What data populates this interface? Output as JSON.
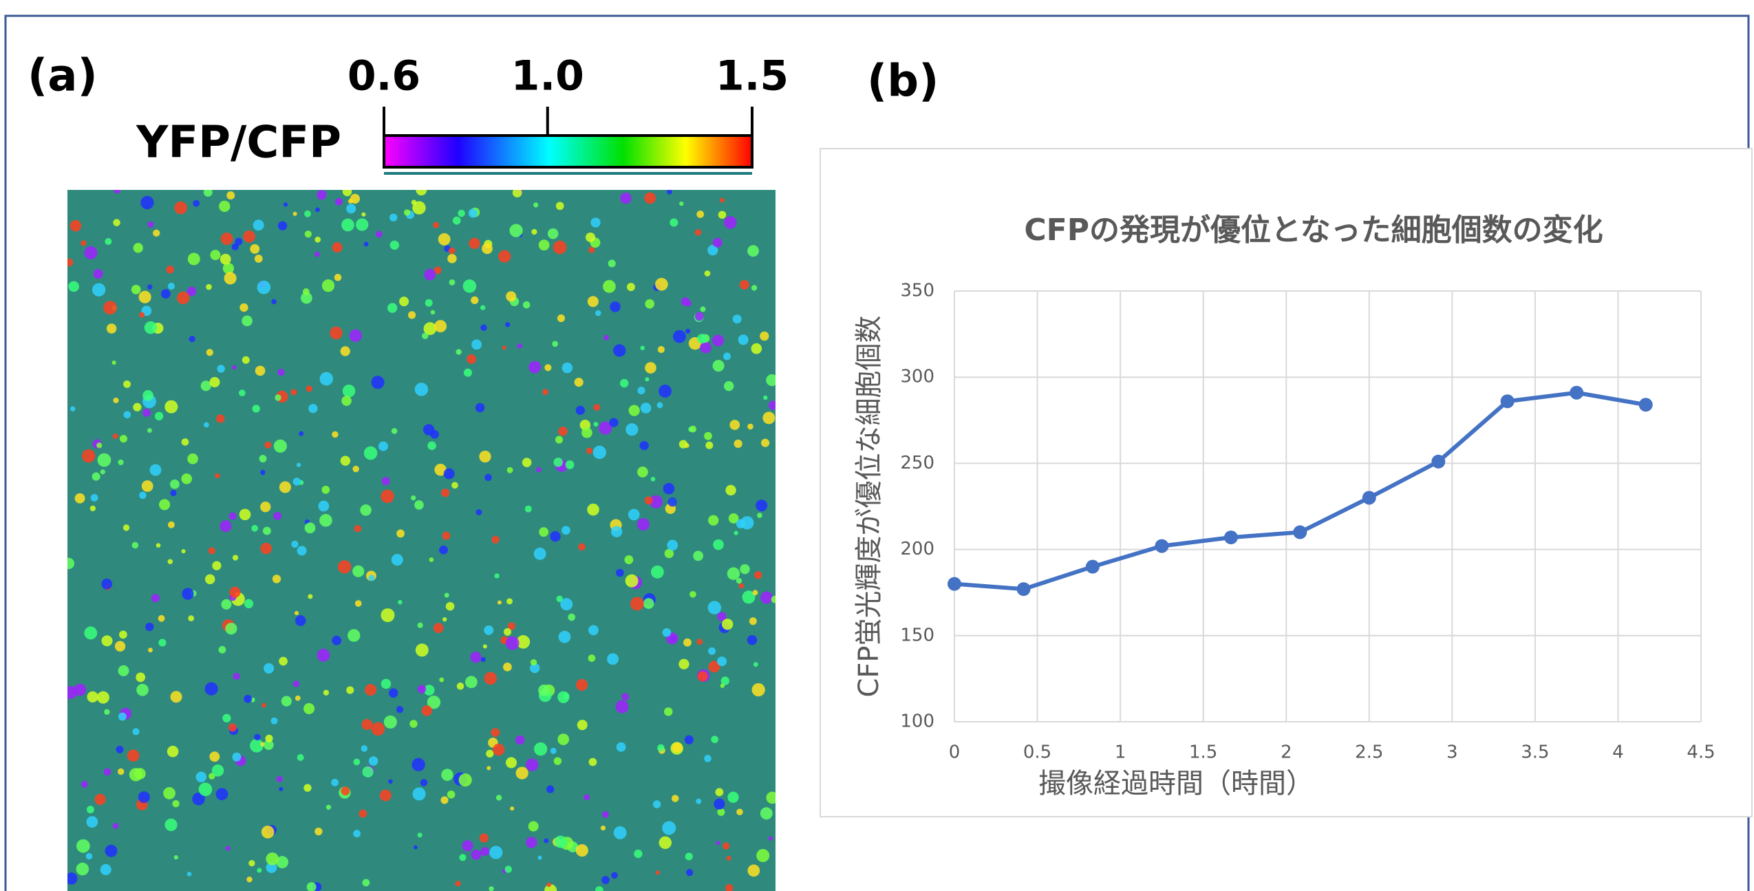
{
  "panel_a": {
    "label": "(a)",
    "colorbar": {
      "title": "YFP/CFP",
      "lim": [
        0.6,
        1.5
      ],
      "ticks": [
        0.6,
        {
          "value": 1,
          "label": "1.0"
        },
        1.5
      ]
    }
  },
  "panel_b": {
    "label": "(b)"
  },
  "chart_data": {
    "type": "line",
    "title": "CFPの発現が優位となった細胞個数の変化",
    "x_label": "撮像経過時間（時間）",
    "y_label": "CFP蛍光輝度が優位な細胞個数",
    "x": [
      0,
      0.417,
      0.833,
      1.25,
      1.667,
      2.083,
      2.5,
      2.917,
      3.333,
      3.75,
      4.167
    ],
    "series": [
      {
        "color": "#4472c4",
        "values": [
          180,
          177,
          190,
          202,
          207,
          210,
          230,
          251,
          286,
          291,
          284
        ]
      }
    ],
    "xlim": [
      0,
      4.5
    ],
    "xticks": [
      0,
      0.5,
      1,
      1.5,
      2,
      2.5,
      3,
      3.5,
      4,
      4.5
    ],
    "ylim": [
      100,
      350
    ],
    "yticks": [
      100,
      150,
      200,
      250,
      300,
      350
    ],
    "grid": true
  }
}
